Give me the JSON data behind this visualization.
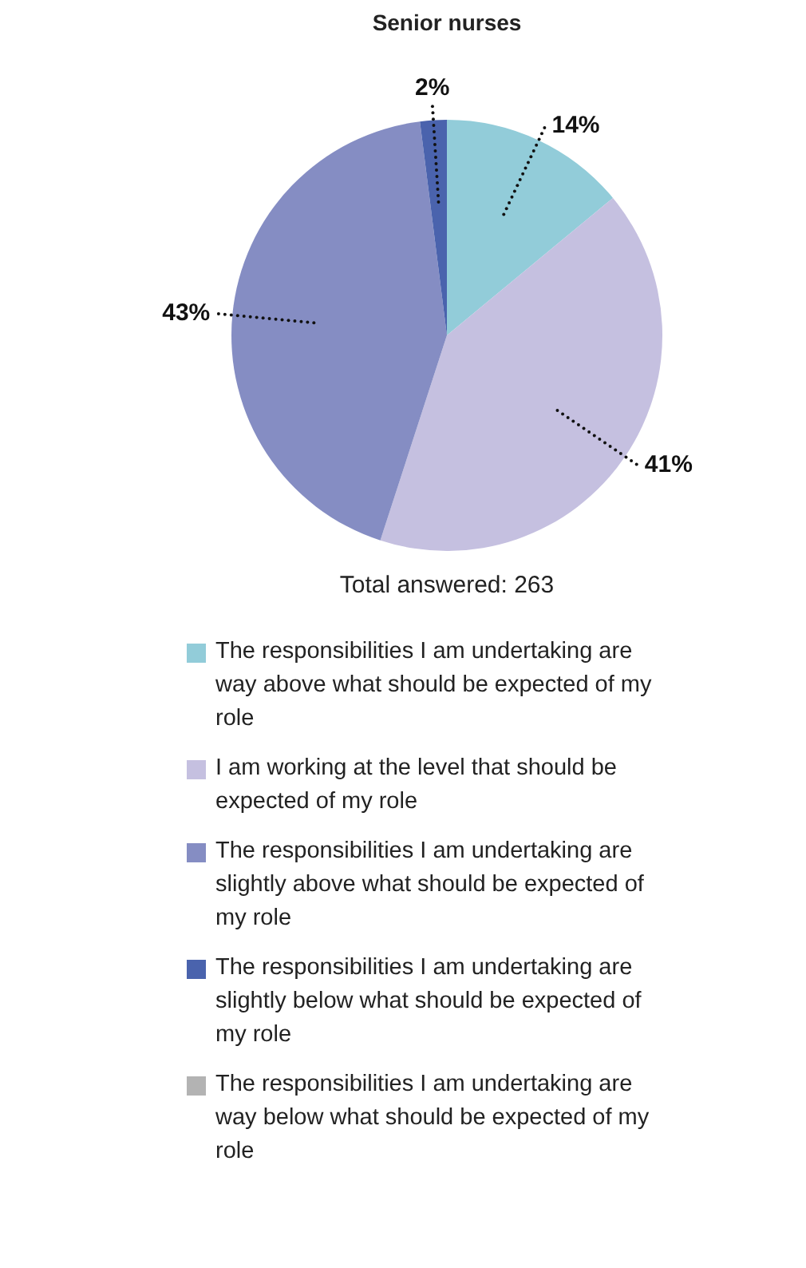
{
  "chart_data": {
    "type": "pie",
    "title": "Senior nurses",
    "categories": [
      "The responsibilities I am undertaking are way above what should be expected of my role",
      "I am working at the level that should be expected of my role",
      "The responsibilities I am undertaking are slightly above what should be expected of my role",
      "The responsibilities I am undertaking are slightly below what should be expected of my role",
      "The responsibilities I am undertaking are way below what should be expected of my role"
    ],
    "values": [
      14,
      41,
      43,
      2,
      0
    ],
    "colors": [
      "#92ccd9",
      "#c5c0e0",
      "#858dc3",
      "#4a63ad",
      "#b3b3b3"
    ],
    "value_labels": [
      "14%",
      "41%",
      "43%",
      "2%",
      null
    ],
    "annotations": [
      "Total answered: 263"
    ],
    "legend": "bottom"
  }
}
